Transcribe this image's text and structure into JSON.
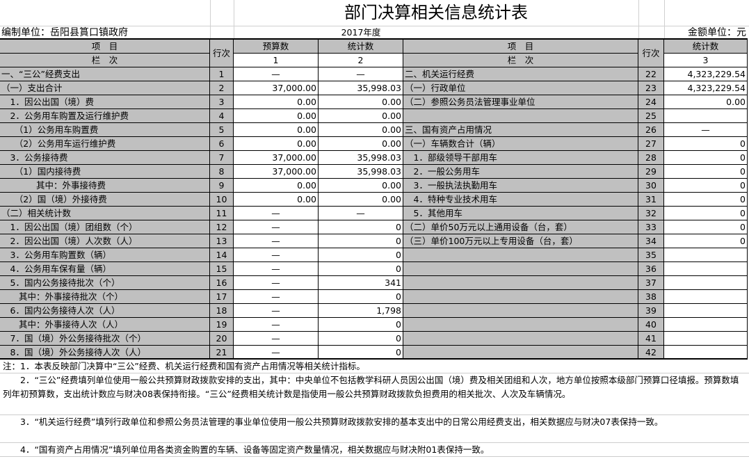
{
  "title": "部门决算相关信息统计表",
  "unit": "编制单位：岳阳县篔口镇政府",
  "year": "2017年度",
  "money_unit": "金额单位：元",
  "header": {
    "item": "项　目",
    "col": "栏　次",
    "line": "行次",
    "budget": "预算数",
    "stat": "统计数",
    "n1": "1",
    "n2": "2",
    "n3": "3"
  },
  "left_rows": [
    [
      "一、“三公”经费支出",
      "1",
      "—",
      "—"
    ],
    [
      "（一）支出合计",
      "2",
      "37,000.00",
      "35,998.03"
    ],
    [
      "　1．因公出国（境）费",
      "3",
      "0.00",
      "0.00"
    ],
    [
      "　2．公务用车购置及运行维护费",
      "4",
      "0.00",
      "0.00"
    ],
    [
      "　　（1）公务用车购置费",
      "5",
      "0.00",
      "0.00"
    ],
    [
      "　　（2）公务用车运行维护费",
      "6",
      "0.00",
      "0.00"
    ],
    [
      "　3．公务接待费",
      "7",
      "37,000.00",
      "35,998.03"
    ],
    [
      "　　（1）国内接待费",
      "8",
      "37,000.00",
      "35,998.03"
    ],
    [
      "　　　　其中：外事接待费",
      "9",
      "0.00",
      "0.00"
    ],
    [
      "　　（2）国（境）外接待费",
      "10",
      "0.00",
      "0.00"
    ],
    [
      "（二）相关统计数",
      "11",
      "—",
      "—"
    ],
    [
      "　1．因公出国（境）团组数（个）",
      "12",
      "—",
      "0"
    ],
    [
      "　2．因公出国（境）人次数（人）",
      "13",
      "—",
      "0"
    ],
    [
      "　3．公务用车购置数（辆）",
      "14",
      "—",
      "0"
    ],
    [
      "　4．公务用车保有量（辆）",
      "15",
      "—",
      "0"
    ],
    [
      "　5．国内公务接待批次（个）",
      "16",
      "—",
      "341"
    ],
    [
      "　　其中：外事接待批次（个）",
      "17",
      "—",
      "0"
    ],
    [
      "　6．国内公务接待人次（人）",
      "18",
      "—",
      "1,798"
    ],
    [
      "　　其中：外事接待人次（人）",
      "19",
      "—",
      "0"
    ],
    [
      "　7．国（境）外公务接待批次（个）",
      "20",
      "—",
      "0"
    ],
    [
      "　8．国（境）外公务接待人次（人）",
      "21",
      "—",
      "0"
    ]
  ],
  "right_rows": [
    [
      "二、机关运行经费",
      "22",
      "4,323,229.54"
    ],
    [
      "（一）行政单位",
      "23",
      "4,323,229.54"
    ],
    [
      "（二）参照公务员法管理事业单位",
      "24",
      "0.00"
    ],
    [
      "",
      "25",
      ""
    ],
    [
      "三、国有资产占用情况",
      "26",
      "—"
    ],
    [
      "（一）车辆数合计（辆）",
      "27",
      "0"
    ],
    [
      "　1．部级领导干部用车",
      "28",
      "0"
    ],
    [
      "　2．一般公务用车",
      "29",
      "0"
    ],
    [
      "　3．一般执法执勤用车",
      "30",
      "0"
    ],
    [
      "　4．特种专业技术用车",
      "31",
      "0"
    ],
    [
      "　5．其他用车",
      "32",
      "0"
    ],
    [
      "（二）单价50万元以上通用设备（台，套）",
      "33",
      "0"
    ],
    [
      "（三）单价100万元以上专用设备（台，套）",
      "34",
      "0"
    ],
    [
      "",
      "35",
      ""
    ],
    [
      "",
      "36",
      ""
    ],
    [
      "",
      "37",
      ""
    ],
    [
      "",
      "38",
      ""
    ],
    [
      "",
      "39",
      ""
    ],
    [
      "",
      "40",
      ""
    ],
    [
      "",
      "41",
      ""
    ],
    [
      "",
      "42",
      ""
    ]
  ],
  "notes": [
    "注：1．本表反映部门决算中“三公”经费、机关运行经费和国有资产占用情况等相关统计指标。",
    "　　2．“三公”经费填列单位使用一般公共预算财政拨款安排的支出，其中：中央单位不包括教学科研人员因公出国（境）费及相关团组和人次，地方单位按照本级部门预算口径填报。预算数填列年初预算数，支出统计数应与财决08表保持衔接。“三公”经费相关统计数是指使用一般公共预算财政拨款负担费用的相关批次、人次及车辆情况。",
    "　　3．“机关运行经费”填列行政单位和参照公务员法管理的事业单位使用一般公共预算财政拨款安排的基本支出中的日常公用经费支出，相关数据应与财决07表保持一致。",
    "　　4．“国有资产占用情况”填列单位用各类资金购置的车辆、设备等固定资产数量情况，相关数据应与财决附01表保持一致。"
  ]
}
